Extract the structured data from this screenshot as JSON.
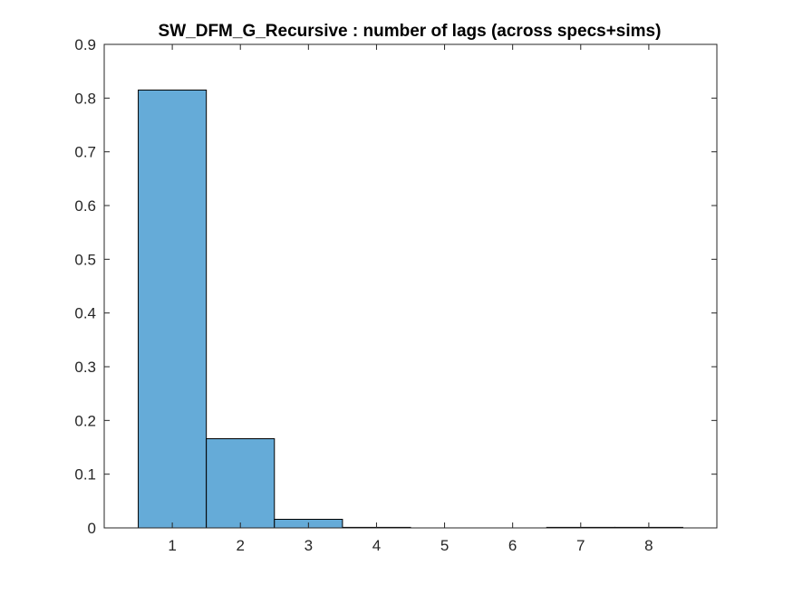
{
  "chart_data": {
    "type": "bar",
    "title": "SW_DFM_G_Recursive : number of lags (across specs+sims)",
    "xlabel": "",
    "ylabel": "",
    "categories": [
      1,
      2,
      3,
      4,
      5,
      6,
      7,
      8
    ],
    "values": [
      0.815,
      0.166,
      0.016,
      0.001,
      0.0,
      0.0,
      0.001,
      0.001
    ],
    "xlim": [
      0,
      9
    ],
    "ylim": [
      0,
      0.9
    ],
    "xticks": [
      "1",
      "2",
      "3",
      "4",
      "5",
      "6",
      "7",
      "8"
    ],
    "yticks": [
      "0",
      "0.1",
      "0.2",
      "0.3",
      "0.4",
      "0.5",
      "0.6",
      "0.7",
      "0.8",
      "0.9"
    ],
    "grid": false,
    "bar_color": "#65abd8",
    "edge_color": "#000000"
  }
}
